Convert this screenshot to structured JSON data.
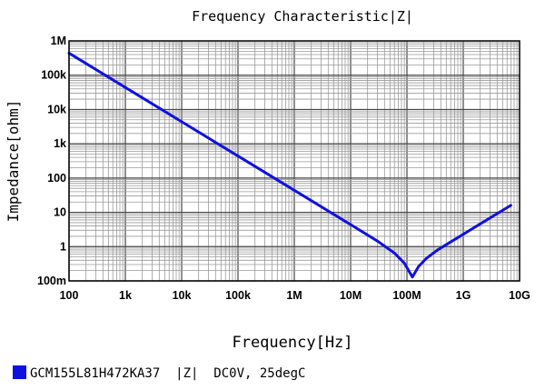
{
  "chart_data": {
    "type": "line",
    "title": "Frequency   Characteristic|Z|",
    "xlabel": "Frequency[Hz]",
    "ylabel": "Impedance[ohm]",
    "x_scale": "log",
    "y_scale": "log",
    "xlim": [
      100,
      10000000000
    ],
    "ylim": [
      0.1,
      1000000
    ],
    "x_ticks": [
      {
        "value": 100,
        "label": "100"
      },
      {
        "value": 1000,
        "label": "1k"
      },
      {
        "value": 10000,
        "label": "10k"
      },
      {
        "value": 100000,
        "label": "100k"
      },
      {
        "value": 1000000,
        "label": "1M"
      },
      {
        "value": 10000000,
        "label": "10M"
      },
      {
        "value": 100000000,
        "label": "100M"
      },
      {
        "value": 1000000000,
        "label": "1G"
      },
      {
        "value": 10000000000,
        "label": "10G"
      }
    ],
    "y_ticks": [
      {
        "value": 0.1,
        "label": "100m"
      },
      {
        "value": 1,
        "label": "1"
      },
      {
        "value": 10,
        "label": "10"
      },
      {
        "value": 100,
        "label": "100"
      },
      {
        "value": 1000,
        "label": "1k"
      },
      {
        "value": 10000,
        "label": "10k"
      },
      {
        "value": 100000,
        "label": "100k"
      },
      {
        "value": 1000000,
        "label": "1M"
      }
    ],
    "grid": true,
    "legend_position": "bottom-left",
    "series": [
      {
        "name": "GCM155L81H472KA37  |Z|  DC0V, 25degC",
        "color": "#1010e0",
        "x": [
          100,
          1000,
          10000,
          100000,
          1000000,
          10000000,
          30000000,
          60000000,
          90000000,
          125000000,
          160000000,
          220000000,
          350000000,
          700000000,
          2000000000,
          7000000000
        ],
        "y": [
          440000,
          44000,
          4400,
          440,
          44,
          4.4,
          1.45,
          0.65,
          0.33,
          0.13,
          0.26,
          0.45,
          0.8,
          1.6,
          4.6,
          16
        ]
      }
    ]
  }
}
